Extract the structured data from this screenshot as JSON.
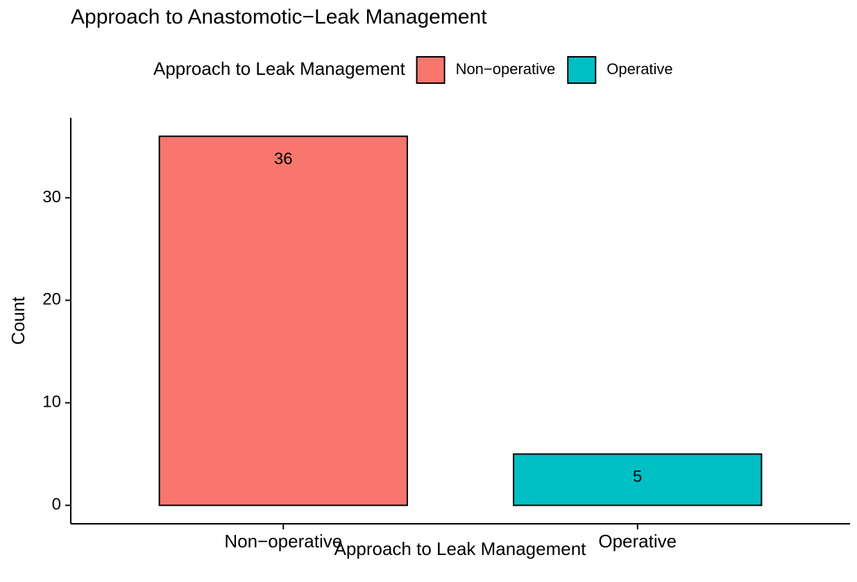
{
  "chart_data": {
    "type": "bar",
    "title": "Approach to Anastomotic−Leak Management",
    "x_label": "Approach to Leak Management",
    "y_label": "Count",
    "legend_title": "Approach to Leak Management",
    "legend_position": "top",
    "categories": [
      "Non−operative",
      "Operative"
    ],
    "values": [
      36,
      5
    ],
    "colors": [
      "#F8766D",
      "#00BFC4"
    ],
    "ylim": [
      -1.8,
      37.8
    ],
    "yticks": [
      0,
      10,
      20,
      30
    ],
    "grid": false
  }
}
